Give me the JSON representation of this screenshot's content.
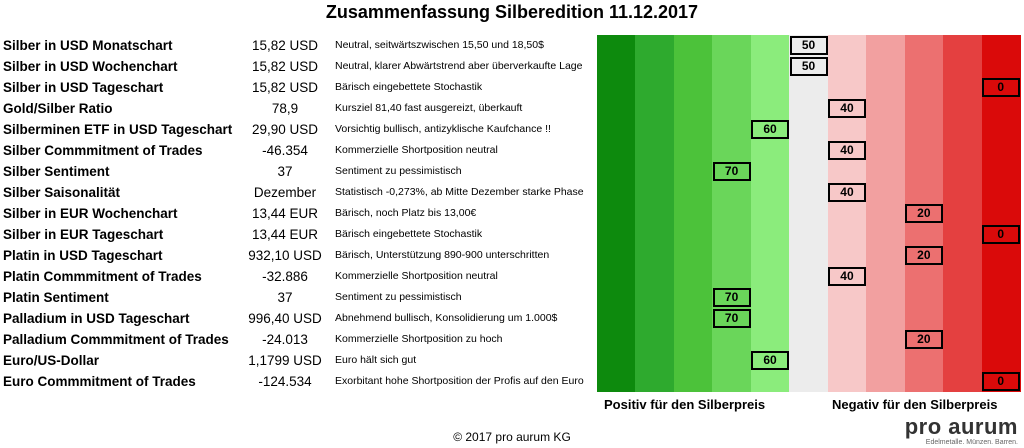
{
  "title": "Zusammenfassung Silberedition 11.12.2017",
  "chart_data": {
    "type": "table",
    "scale_colors": [
      "#0d8a0d",
      "#2eaa2e",
      "#4cc23a",
      "#6ad65a",
      "#8bec7c",
      "#ececec",
      "#f7c8c8",
      "#f2a0a0",
      "#ec7070",
      "#e44040",
      "#da0a0a"
    ],
    "x_left_label": "Positiv für den Silberpreis",
    "x_right_label": "Negativ für den Silberpreis",
    "rows": [
      {
        "label": "Silber in USD Monatschart",
        "value": "15,82 USD",
        "comment": "Neutral, seitwärtszwischen 15,50 und 18,50$",
        "score": 50
      },
      {
        "label": "Silber in USD Wochenchart",
        "value": "15,82 USD",
        "comment": "Neutral, klarer Abwärtstrend aber überverkaufte Lage",
        "score": 50
      },
      {
        "label": "Silber in USD Tageschart",
        "value": "15,82 USD",
        "comment": "Bärisch eingebettete Stochastik",
        "score": 0
      },
      {
        "label": "Gold/Silber Ratio",
        "value": "78,9",
        "comment": "Kursziel 81,40 fast ausgereizt, überkauft",
        "score": 40
      },
      {
        "label": "Silberminen ETF in USD Tageschart",
        "value": "29,90 USD",
        "comment": "Vorsichtig bullisch, antizyklische Kaufchance !!",
        "score": 60
      },
      {
        "label": "Silber Commmitment of Trades",
        "value": "-46.354",
        "comment": "Kommerzielle Shortposition neutral",
        "score": 40
      },
      {
        "label": "Silber Sentiment",
        "value": "37",
        "comment": "Sentiment zu pessimistisch",
        "score": 70
      },
      {
        "label": "Silber Saisonalität",
        "value": "Dezember",
        "comment": "Statistisch -0,273%, ab Mitte Dezember starke Phase",
        "score": 40
      },
      {
        "label": "Silber in EUR Wochenchart",
        "value": "13,44 EUR",
        "comment": "Bärisch, noch Platz bis 13,00€",
        "score": 20
      },
      {
        "label": "Silber in EUR Tageschart",
        "value": "13,44 EUR",
        "comment": "Bärisch eingebettete Stochastik",
        "score": 0
      },
      {
        "label": "Platin in USD Tageschart",
        "value": "932,10 USD",
        "comment": "Bärisch, Unterstützung 890-900 unterschritten",
        "score": 20
      },
      {
        "label": "Platin Commmitment of Trades",
        "value": "-32.886",
        "comment": "Kommerzielle Shortposition neutral",
        "score": 40
      },
      {
        "label": "Platin Sentiment",
        "value": "37",
        "comment": "Sentiment zu pessimistisch",
        "score": 70
      },
      {
        "label": "Palladium in USD Tageschart",
        "value": "996,40 USD",
        "comment": "Abnehmend bullisch, Konsolidierung um 1.000$",
        "score": 70
      },
      {
        "label": "Palladium Commmitment of Trades",
        "value": "-24.013",
        "comment": "Kommerzielle Shortposition zu hoch",
        "score": 20
      },
      {
        "label": "Euro/US-Dollar",
        "value": "1,1799 USD",
        "comment": "Euro hält sich gut",
        "score": 60
      },
      {
        "label": "Euro Commmitment of Trades",
        "value": "-124.534",
        "comment": "Exorbitant hohe Shortposition der Profis auf den Euro",
        "score": 0
      }
    ]
  },
  "footer": "© 2017 pro aurum KG",
  "logo": {
    "name": "pro aurum",
    "tagline": "Edelmetalle. Münzen. Barren."
  }
}
